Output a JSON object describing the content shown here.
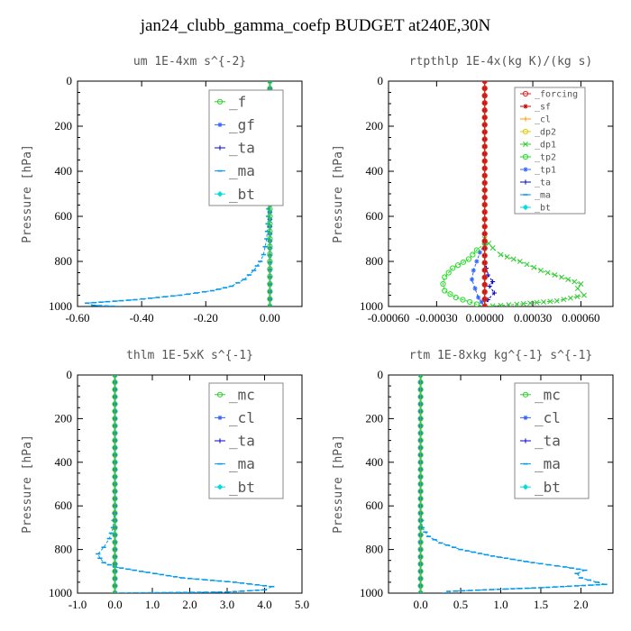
{
  "figure_title": "jan24_clubb_gamma_coefp  BUDGET at240E,30N",
  "chart_data": [
    {
      "type": "line",
      "title": "um  1E-4xm s^{-2}",
      "ylabel": "Pressure [hPa]",
      "xlim": [
        -0.6,
        0.1
      ],
      "ylim": [
        1000,
        0
      ],
      "xticks": [
        -0.6,
        -0.4,
        -0.2,
        0.0
      ],
      "xtick_labels": [
        "-0.60",
        "-0.40",
        "-0.20",
        "0.00"
      ],
      "yticks": [
        0,
        200,
        400,
        600,
        800,
        1000
      ],
      "legend_font": 16,
      "legend": [
        "_f",
        "_gf",
        "_ta",
        "_ma",
        "_bt"
      ],
      "series": [
        {
          "legend": "_f",
          "color": "#33cc33",
          "marker": "circle",
          "points": [
            [
              0,
              0
            ],
            [
              0,
              100
            ],
            [
              0,
              200
            ],
            [
              0,
              300
            ],
            [
              0,
              400
            ],
            [
              0,
              500
            ],
            [
              0,
              600
            ],
            [
              0,
              700
            ],
            [
              0,
              800
            ],
            [
              0,
              900
            ],
            [
              0,
              1000
            ]
          ]
        },
        {
          "legend": "_gf",
          "color": "#3366ff",
          "marker": "star",
          "points": [
            [
              0,
              0
            ],
            [
              0,
              1000
            ]
          ]
        },
        {
          "legend": "_ta",
          "color": "#0000dd",
          "marker": "plus",
          "points": [
            [
              0,
              0
            ],
            [
              0,
              1000
            ]
          ]
        },
        {
          "legend": "_ma",
          "color": "#0099ee",
          "marker": "dash",
          "points": [
            [
              0.0,
              0
            ],
            [
              -0.002,
              100
            ],
            [
              0.0,
              200
            ],
            [
              -0.005,
              300
            ],
            [
              0.0,
              400
            ],
            [
              -0.003,
              500
            ],
            [
              -0.005,
              600
            ],
            [
              -0.01,
              700
            ],
            [
              -0.02,
              770
            ],
            [
              -0.03,
              800
            ],
            [
              -0.05,
              840
            ],
            [
              -0.08,
              880
            ],
            [
              -0.12,
              910
            ],
            [
              -0.18,
              930
            ],
            [
              -0.28,
              950
            ],
            [
              -0.42,
              970
            ],
            [
              -0.57,
              985
            ],
            [
              -0.55,
              995
            ],
            [
              -0.47,
              1000
            ]
          ]
        },
        {
          "legend": "_bt",
          "color": "#00dddd",
          "marker": "diamond",
          "points": [
            [
              0,
              0
            ],
            [
              0,
              1000
            ]
          ]
        }
      ]
    },
    {
      "type": "line",
      "title": "rtpthlp  1E-4x(kg K)/(kg s)",
      "ylabel": "Pressure [hPa]",
      "xlim": [
        -0.0006,
        0.0008
      ],
      "ylim": [
        1000,
        0
      ],
      "xticks": [
        -0.0006,
        -0.0003,
        0.0,
        0.0003,
        0.0006
      ],
      "xtick_labels": [
        "-0.00060",
        "-0.00030",
        "0.00000",
        "0.00030",
        "0.00060"
      ],
      "yticks": [
        0,
        200,
        400,
        600,
        800,
        1000
      ],
      "legend_font": 10,
      "legend": [
        "_forcing",
        "_sf",
        "_cl",
        "_dp2",
        "_dp1",
        "_tp2",
        "_tp1",
        "_ta",
        "_ma",
        "_bt"
      ],
      "series": [
        {
          "legend": "_forcing",
          "color": "#dd2222",
          "marker": "circle",
          "points": [
            [
              0,
              0
            ],
            [
              0,
              1000
            ]
          ]
        },
        {
          "legend": "_sf",
          "color": "#cc0000",
          "marker": "star",
          "points": [
            [
              0,
              0
            ],
            [
              0,
              1000
            ]
          ]
        },
        {
          "legend": "_cl",
          "color": "#ff9900",
          "marker": "plus",
          "points": [
            [
              0,
              0
            ],
            [
              0,
              1000
            ]
          ]
        },
        {
          "legend": "_dp2",
          "color": "#ddcc00",
          "marker": "circle",
          "points": [
            [
              0,
              0
            ],
            [
              0,
              1000
            ]
          ]
        },
        {
          "legend": "_dp1",
          "color": "#33cc33",
          "marker": "x",
          "points": [
            [
              0.0,
              700
            ],
            [
              5e-05,
              740
            ],
            [
              0.0001,
              770
            ],
            [
              0.00022,
              800
            ],
            [
              0.00035,
              840
            ],
            [
              0.00048,
              870
            ],
            [
              0.0006,
              900
            ],
            [
              0.00058,
              920
            ],
            [
              0.00062,
              950
            ],
            [
              0.00045,
              975
            ],
            [
              0.0002,
              990
            ],
            [
              0.0,
              1000
            ]
          ]
        },
        {
          "legend": "_tp2",
          "color": "#22dd22",
          "marker": "circle",
          "points": [
            [
              0.0,
              720
            ],
            [
              -5e-05,
              750
            ],
            [
              -0.0001,
              790
            ],
            [
              -0.0002,
              830
            ],
            [
              -0.00025,
              870
            ],
            [
              -0.00026,
              900
            ],
            [
              -0.00025,
              930
            ],
            [
              -0.00018,
              960
            ],
            [
              -5e-05,
              990
            ],
            [
              0.0,
              1000
            ]
          ]
        },
        {
          "legend": "_tp1",
          "color": "#3366ff",
          "marker": "star",
          "points": [
            [
              0.0,
              720
            ],
            [
              -3e-05,
              760
            ],
            [
              -5e-05,
              800
            ],
            [
              -7e-05,
              840
            ],
            [
              -8e-05,
              880
            ],
            [
              -6e-05,
              920
            ],
            [
              -4e-05,
              960
            ],
            [
              0.0,
              1000
            ]
          ]
        },
        {
          "legend": "_ta",
          "color": "#0000cc",
          "marker": "plus",
          "points": [
            [
              0.0,
              800
            ],
            [
              2e-05,
              860
            ],
            [
              5e-05,
              890
            ],
            [
              3e-05,
              910
            ],
            [
              6e-05,
              940
            ],
            [
              2e-05,
              970
            ],
            [
              0.0,
              1000
            ]
          ]
        },
        {
          "legend": "_ma",
          "color": "#0099ee",
          "marker": "dash",
          "points": [
            [
              0,
              0
            ],
            [
              0,
              1000
            ]
          ]
        },
        {
          "legend": "_bt",
          "color": "#00dddd",
          "marker": "diamond",
          "points": [
            [
              0,
              0
            ],
            [
              0,
              1000
            ]
          ]
        }
      ]
    },
    {
      "type": "line",
      "title": "thlm  1E-5xK s^{-1}",
      "ylabel": "Pressure [hPa]",
      "xlim": [
        -1.0,
        5.0
      ],
      "ylim": [
        1000,
        0
      ],
      "xticks": [
        -1.0,
        0.0,
        1.0,
        2.0,
        3.0,
        4.0,
        5.0
      ],
      "xtick_labels": [
        "-1.0",
        "0.0",
        "1.0",
        "2.0",
        "3.0",
        "4.0",
        "5.0"
      ],
      "yticks": [
        0,
        200,
        400,
        600,
        800,
        1000
      ],
      "legend_font": 16,
      "legend": [
        "_mc",
        "_cl",
        "_ta",
        "_ma",
        "_bt"
      ],
      "series": [
        {
          "legend": "_mc",
          "color": "#33cc33",
          "marker": "circle",
          "points": [
            [
              0,
              0
            ],
            [
              0,
              100
            ],
            [
              0,
              200
            ],
            [
              0,
              300
            ],
            [
              0,
              400
            ],
            [
              0,
              500
            ],
            [
              0,
              600
            ],
            [
              0,
              700
            ],
            [
              0,
              800
            ],
            [
              0,
              900
            ],
            [
              0,
              1000
            ]
          ]
        },
        {
          "legend": "_cl",
          "color": "#3366ff",
          "marker": "star",
          "points": [
            [
              0,
              0
            ],
            [
              0,
              1000
            ]
          ]
        },
        {
          "legend": "_ta",
          "color": "#0000dd",
          "marker": "plus",
          "points": [
            [
              0,
              0
            ],
            [
              0,
              1000
            ]
          ]
        },
        {
          "legend": "_ma",
          "color": "#0099ee",
          "marker": "dash",
          "points": [
            [
              0.0,
              0
            ],
            [
              0.0,
              100
            ],
            [
              0.0,
              200
            ],
            [
              0.0,
              300
            ],
            [
              0.0,
              400
            ],
            [
              0.0,
              500
            ],
            [
              0.0,
              600
            ],
            [
              -0.05,
              700
            ],
            [
              -0.15,
              750
            ],
            [
              -0.3,
              790
            ],
            [
              -0.45,
              820
            ],
            [
              -0.4,
              840
            ],
            [
              -0.3,
              860
            ],
            [
              0.0,
              880
            ],
            [
              0.7,
              900
            ],
            [
              1.8,
              930
            ],
            [
              3.2,
              950
            ],
            [
              4.2,
              970
            ],
            [
              4.0,
              985
            ],
            [
              3.0,
              995
            ],
            [
              0.0,
              1000
            ]
          ]
        },
        {
          "legend": "_bt",
          "color": "#00dddd",
          "marker": "diamond",
          "points": [
            [
              0,
              0
            ],
            [
              0,
              1000
            ]
          ]
        }
      ]
    },
    {
      "type": "line",
      "title": "rtm  1E-8xkg kg^{-1} s^{-1}",
      "ylabel": "Pressure [hPa]",
      "xlim": [
        -0.4,
        2.4
      ],
      "ylim": [
        1000,
        0
      ],
      "xticks": [
        0.0,
        0.5,
        1.0,
        1.5,
        2.0
      ],
      "xtick_labels": [
        "0.0",
        "0.5",
        "1.0",
        "1.5",
        "2.0"
      ],
      "yticks": [
        0,
        200,
        400,
        600,
        800,
        1000
      ],
      "legend_font": 16,
      "legend": [
        "_mc",
        "_cl",
        "_ta",
        "_ma",
        "_bt"
      ],
      "series": [
        {
          "legend": "_mc",
          "color": "#33cc33",
          "marker": "circle",
          "points": [
            [
              0,
              0
            ],
            [
              0,
              100
            ],
            [
              0,
              200
            ],
            [
              0,
              300
            ],
            [
              0,
              400
            ],
            [
              0,
              500
            ],
            [
              0,
              600
            ],
            [
              0,
              700
            ],
            [
              0,
              800
            ],
            [
              0,
              900
            ],
            [
              0,
              1000
            ]
          ]
        },
        {
          "legend": "_cl",
          "color": "#3366ff",
          "marker": "star",
          "points": [
            [
              0,
              0
            ],
            [
              0,
              1000
            ]
          ]
        },
        {
          "legend": "_ta",
          "color": "#0000dd",
          "marker": "plus",
          "points": [
            [
              0,
              0
            ],
            [
              0,
              1000
            ]
          ]
        },
        {
          "legend": "_ma",
          "color": "#0099ee",
          "marker": "dash",
          "points": [
            [
              0.0,
              0
            ],
            [
              0.0,
              200
            ],
            [
              0.0,
              400
            ],
            [
              0.0,
              600
            ],
            [
              0.02,
              700
            ],
            [
              0.1,
              740
            ],
            [
              0.25,
              770
            ],
            [
              0.5,
              800
            ],
            [
              0.9,
              830
            ],
            [
              1.4,
              860
            ],
            [
              1.8,
              880
            ],
            [
              2.05,
              895
            ],
            [
              1.95,
              910
            ],
            [
              2.0,
              930
            ],
            [
              2.3,
              960
            ],
            [
              1.5,
              975
            ],
            [
              0.8,
              985
            ],
            [
              0.35,
              992
            ],
            [
              0.3,
              1000
            ]
          ]
        },
        {
          "legend": "_bt",
          "color": "#00dddd",
          "marker": "diamond",
          "points": [
            [
              0,
              0
            ],
            [
              0,
              1000
            ]
          ]
        }
      ]
    }
  ]
}
